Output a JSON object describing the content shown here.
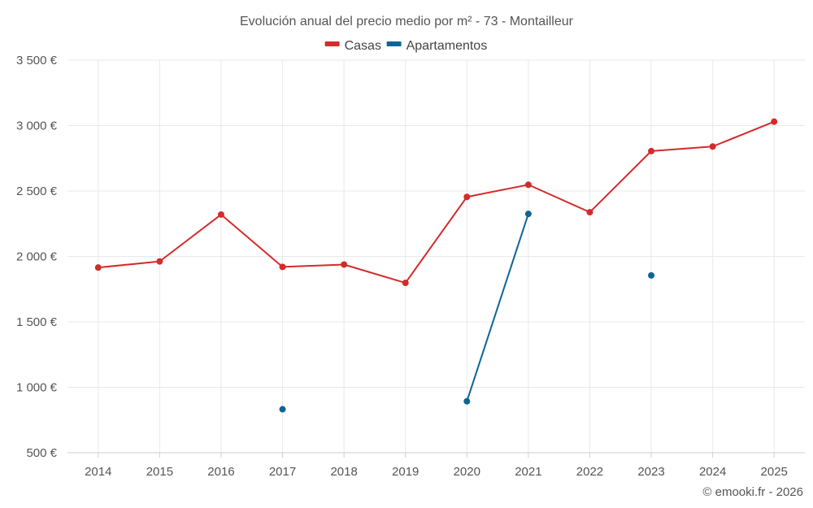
{
  "chart_data": {
    "type": "line",
    "title": "Evolución anual del precio medio por m² - 73 - Montailleur",
    "categories": [
      "2014",
      "2015",
      "2016",
      "2017",
      "2018",
      "2019",
      "2020",
      "2021",
      "2022",
      "2023",
      "2024",
      "2025"
    ],
    "series": [
      {
        "name": "Casas",
        "color": "#d42b2b",
        "values": [
          1915,
          1962,
          2320,
          1920,
          1938,
          1798,
          2455,
          2548,
          2338,
          2805,
          2840,
          3030
        ]
      },
      {
        "name": "Apartamentos",
        "color": "#0e6496",
        "values": [
          null,
          null,
          null,
          832,
          null,
          null,
          893,
          2325,
          null,
          1855,
          null,
          null
        ]
      }
    ],
    "ylim": [
      500,
      3500
    ],
    "yticks": [
      500,
      1000,
      1500,
      2000,
      2500,
      3000,
      3500
    ],
    "ytick_labels": [
      "500 €",
      "1 000 €",
      "1 500 €",
      "2 000 €",
      "2 500 €",
      "3 000 €",
      "3 500 €"
    ],
    "xlabel": "",
    "ylabel": "",
    "grid": true,
    "legend_position": "top-center"
  },
  "credit": "© emooki.fr - 2026"
}
